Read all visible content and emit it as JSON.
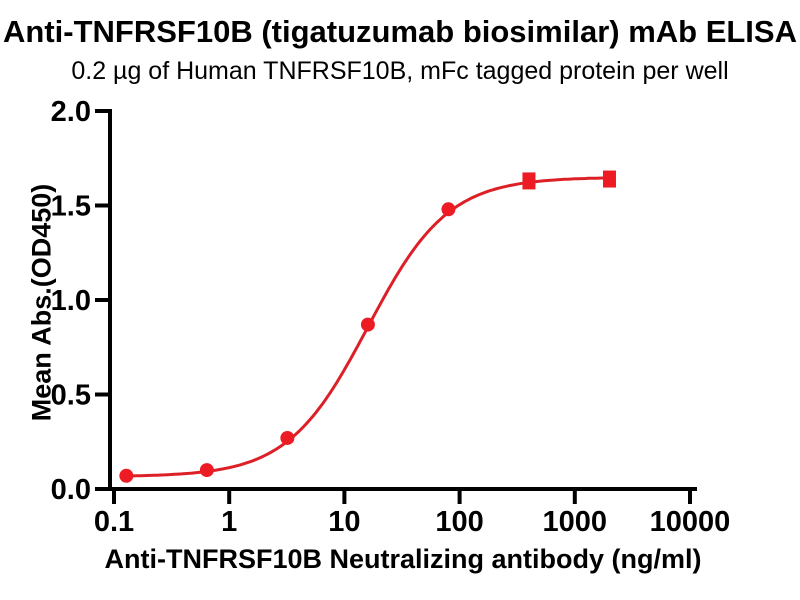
{
  "header": {
    "title": "Anti-TNFRSF10B (tigatuzumab biosimilar) mAb ELISA",
    "subtitle": "0.2 µg of Human TNFRSF10B, mFc tagged protein per well"
  },
  "colors": {
    "accent_red": "#ED1C24",
    "curve_red": "#DD2027",
    "axis_black": "#000000",
    "background": "#FFFFFF"
  },
  "chart_data": {
    "type": "scatter",
    "title": "Anti-TNFRSF10B (tigatuzumab biosimilar) mAb ELISA",
    "subtitle": "0.2 µg of Human TNFRSF10B, mFc tagged protein per well",
    "xlabel": "Anti-TNFRSF10B Neutralizing antibody (ng/ml)",
    "ylabel": "Mean Abs.(OD450)",
    "x_scale": "log10",
    "xlim": [
      0.1,
      10000
    ],
    "ylim": [
      0.0,
      2.0
    ],
    "x_ticks": [
      0.1,
      1,
      10,
      100,
      1000,
      10000
    ],
    "x_tick_labels": [
      "0.1",
      "1",
      "10",
      "100",
      "1000",
      "10000"
    ],
    "y_ticks": [
      0.0,
      0.5,
      1.0,
      1.5,
      2.0
    ],
    "y_tick_labels": [
      "0.0",
      "0.5",
      "1.0",
      "1.5",
      "2.0"
    ],
    "grid": false,
    "legend": false,
    "series": [
      {
        "name": "Anti-TNFRSF10B neutralizing antibody",
        "color": "#ED1C24",
        "points": [
          {
            "x": 0.128,
            "y": 0.07,
            "marker": "circle"
          },
          {
            "x": 0.64,
            "y": 0.1,
            "marker": "circle"
          },
          {
            "x": 3.2,
            "y": 0.27,
            "marker": "circle"
          },
          {
            "x": 16,
            "y": 0.87,
            "marker": "circle"
          },
          {
            "x": 80,
            "y": 1.48,
            "marker": "circle"
          },
          {
            "x": 400,
            "y": 1.63,
            "marker": "square"
          },
          {
            "x": 2000,
            "y": 1.64,
            "marker": "square"
          }
        ],
        "fit": {
          "model": "4PL",
          "bottom": 0.065,
          "top": 1.65,
          "ec50": 16,
          "hill": 1.25
        }
      }
    ]
  }
}
